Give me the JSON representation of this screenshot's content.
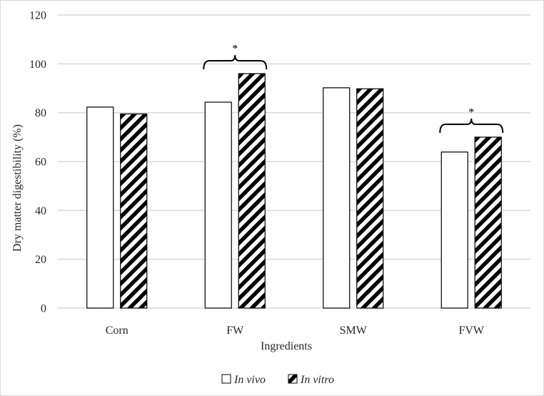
{
  "chart_data": {
    "type": "bar",
    "title": "",
    "xlabel": "Ingredients",
    "ylabel": "Dry matter digestibility (%)",
    "ylim": [
      0,
      120
    ],
    "yticks": [
      0,
      20,
      40,
      60,
      80,
      100,
      120
    ],
    "categories": [
      "Corn",
      "FW",
      "SMW",
      "FVW"
    ],
    "series": [
      {
        "name": "In vivo",
        "values": [
          82.3,
          84.3,
          90.2,
          63.9
        ],
        "pattern": "solid-white"
      },
      {
        "name": "In vitro",
        "values": [
          79.5,
          96.0,
          89.8,
          70.0
        ],
        "pattern": "diagonal-hatch"
      }
    ],
    "grid": true,
    "legend_position": "bottom",
    "significance": [
      {
        "category": "FW",
        "label": "*"
      },
      {
        "category": "FVW",
        "label": "*"
      }
    ],
    "colors": {
      "grid": "#d9d9d9",
      "bar_outline": "#000000",
      "hatch": "#000000",
      "background": "#ffffff"
    }
  }
}
